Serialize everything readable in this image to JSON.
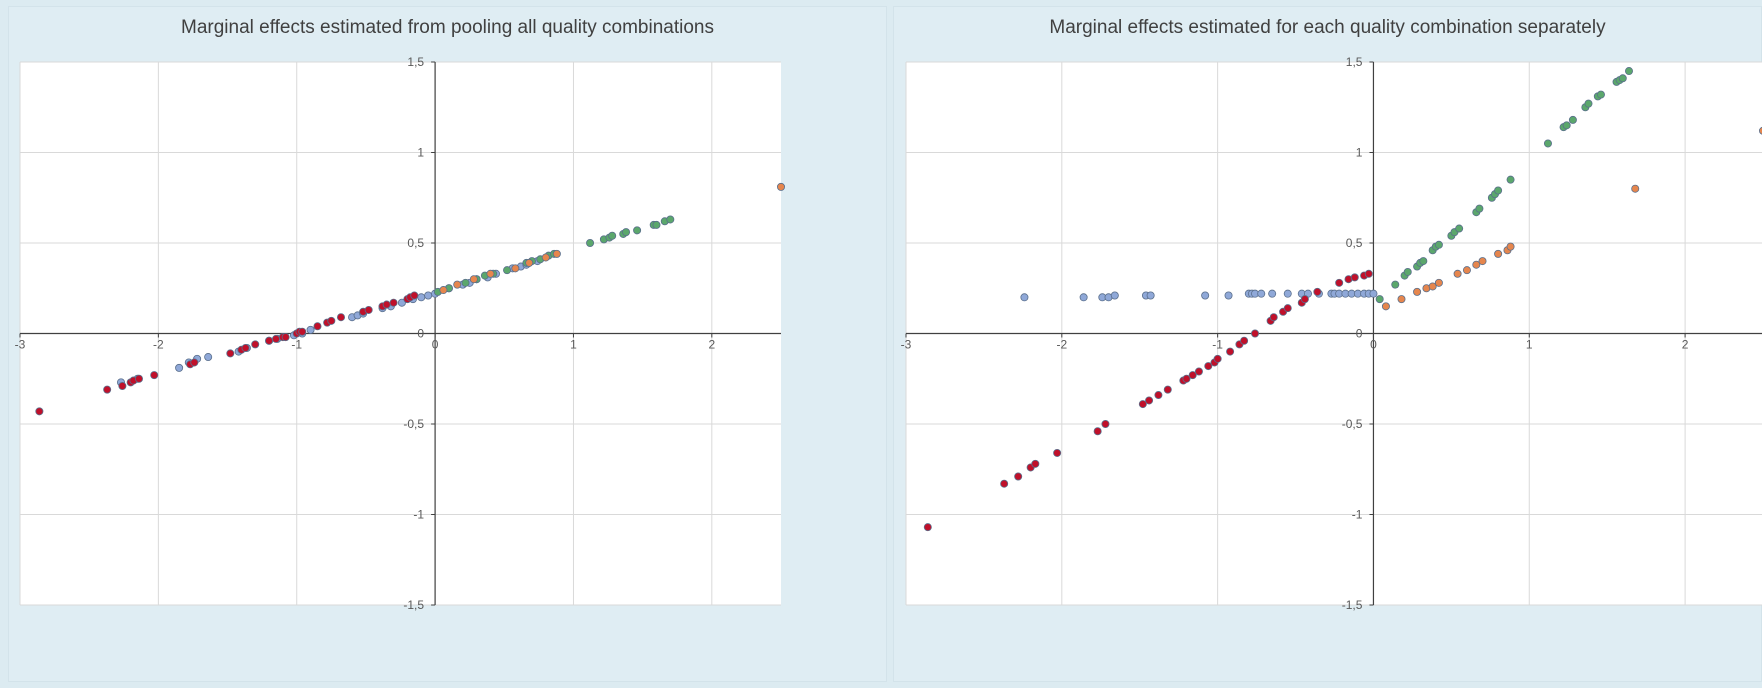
{
  "chart_data": [
    {
      "type": "scatter",
      "title": "Marginal effects estimated from pooling all quality combinations",
      "xlabel": "",
      "ylabel": "",
      "xlim": [
        -3,
        2.5
      ],
      "ylim": [
        -1.5,
        1.5
      ],
      "xticks": [
        "-3",
        "-2",
        "-1",
        "0",
        "1",
        "2"
      ],
      "yticks": [
        "-1,5",
        "-1",
        "-0,5",
        "0",
        "0,5",
        "1",
        "1,5"
      ],
      "grid": true,
      "legend": "none",
      "series": [
        {
          "color": "#8fa8d8",
          "x": [
            -2.27,
            -2.15,
            -1.85,
            -1.78,
            -1.72,
            -1.64,
            -1.42,
            -1.36,
            -1.2,
            -1.14,
            -1.02,
            -0.96,
            -0.9,
            -0.6,
            -0.56,
            -0.52,
            -0.38,
            -0.32,
            -0.24,
            -0.16,
            -0.1,
            -0.05,
            0.0,
            0.1,
            0.2,
            0.25,
            0.3,
            0.38,
            0.44,
            0.56,
            0.62,
            0.66,
            0.74
          ],
          "y": [
            -0.27,
            -0.25,
            -0.19,
            -0.16,
            -0.14,
            -0.13,
            -0.1,
            -0.08,
            -0.04,
            -0.03,
            -0.01,
            0.0,
            0.02,
            0.09,
            0.1,
            0.11,
            0.14,
            0.15,
            0.17,
            0.19,
            0.2,
            0.21,
            0.22,
            0.25,
            0.27,
            0.28,
            0.3,
            0.31,
            0.33,
            0.36,
            0.37,
            0.38,
            0.4
          ]
        },
        {
          "color": "#5ba76c",
          "x": [
            0.02,
            0.1,
            0.22,
            0.3,
            0.36,
            0.42,
            0.52,
            0.66,
            0.7,
            0.76,
            0.82,
            0.86,
            1.12,
            1.22,
            1.26,
            1.28,
            1.36,
            1.38,
            1.46,
            1.58,
            1.6,
            1.66,
            1.7
          ],
          "y": [
            0.23,
            0.25,
            0.28,
            0.3,
            0.32,
            0.33,
            0.35,
            0.39,
            0.4,
            0.41,
            0.43,
            0.44,
            0.5,
            0.52,
            0.53,
            0.54,
            0.55,
            0.56,
            0.57,
            0.6,
            0.6,
            0.62,
            0.63
          ]
        },
        {
          "color": "#e6864d",
          "x": [
            0.06,
            0.16,
            0.28,
            0.4,
            0.58,
            0.68,
            0.8,
            0.88,
            2.5
          ],
          "y": [
            0.24,
            0.27,
            0.3,
            0.33,
            0.36,
            0.39,
            0.42,
            0.44,
            0.81
          ]
        },
        {
          "color": "#c0102a",
          "x": [
            -2.86,
            -2.37,
            -2.26,
            -2.2,
            -2.18,
            -2.14,
            -2.03,
            -1.77,
            -1.74,
            -1.48,
            -1.4,
            -1.37,
            -1.3,
            -1.2,
            -1.15,
            -1.1,
            -1.08,
            -1.0,
            -0.98,
            -0.96,
            -0.85,
            -0.78,
            -0.75,
            -0.68,
            -0.52,
            -0.48,
            -0.38,
            -0.35,
            -0.3,
            -0.2,
            -0.18,
            -0.15
          ],
          "y": [
            -0.43,
            -0.31,
            -0.29,
            -0.27,
            -0.26,
            -0.25,
            -0.23,
            -0.17,
            -0.16,
            -0.11,
            -0.09,
            -0.08,
            -0.06,
            -0.04,
            -0.03,
            -0.02,
            -0.02,
            0.0,
            0.01,
            0.01,
            0.04,
            0.06,
            0.07,
            0.09,
            0.12,
            0.13,
            0.15,
            0.16,
            0.17,
            0.19,
            0.2,
            0.21
          ]
        }
      ]
    },
    {
      "type": "scatter",
      "title": "Marginal effects estimated for each quality combination separately",
      "xlabel": "",
      "ylabel": "",
      "xlim": [
        -3,
        2.5
      ],
      "ylim": [
        -1.5,
        1.5
      ],
      "xticks": [
        "-3",
        "-2",
        "-1",
        "0",
        "1",
        "2"
      ],
      "yticks": [
        "-1,5",
        "-1",
        "-0,5",
        "0",
        "0,5",
        "1",
        "1,5"
      ],
      "grid": true,
      "legend": "none",
      "series": [
        {
          "color": "#8fa8d8",
          "x": [
            -2.24,
            -1.86,
            -1.74,
            -1.7,
            -1.66,
            -1.46,
            -1.43,
            -1.08,
            -0.93,
            -0.8,
            -0.78,
            -0.76,
            -0.72,
            -0.65,
            -0.55,
            -0.46,
            -0.42,
            -0.35,
            -0.27,
            -0.25,
            -0.22,
            -0.18,
            -0.14,
            -0.1,
            -0.06,
            -0.03,
            0.0
          ],
          "y": [
            0.2,
            0.2,
            0.2,
            0.2,
            0.21,
            0.21,
            0.21,
            0.21,
            0.21,
            0.22,
            0.22,
            0.22,
            0.22,
            0.22,
            0.22,
            0.22,
            0.22,
            0.22,
            0.22,
            0.22,
            0.22,
            0.22,
            0.22,
            0.22,
            0.22,
            0.22,
            0.22
          ]
        },
        {
          "color": "#5ba76c",
          "x": [
            0.04,
            0.14,
            0.2,
            0.22,
            0.28,
            0.3,
            0.32,
            0.38,
            0.4,
            0.42,
            0.5,
            0.52,
            0.55,
            0.66,
            0.68,
            0.76,
            0.78,
            0.8,
            0.88,
            1.12,
            1.22,
            1.24,
            1.28,
            1.36,
            1.38,
            1.44,
            1.46,
            1.56,
            1.58,
            1.6,
            1.64
          ],
          "y": [
            0.19,
            0.27,
            0.32,
            0.34,
            0.37,
            0.39,
            0.4,
            0.46,
            0.48,
            0.49,
            0.54,
            0.56,
            0.58,
            0.67,
            0.69,
            0.75,
            0.77,
            0.79,
            0.85,
            1.05,
            1.14,
            1.15,
            1.18,
            1.25,
            1.27,
            1.31,
            1.32,
            1.39,
            1.4,
            1.41,
            1.45
          ]
        },
        {
          "color": "#e6864d",
          "x": [
            0.08,
            0.18,
            0.28,
            0.34,
            0.38,
            0.42,
            0.54,
            0.6,
            0.66,
            0.7,
            0.8,
            0.86,
            0.88,
            1.68,
            2.5
          ],
          "y": [
            0.15,
            0.19,
            0.23,
            0.25,
            0.26,
            0.28,
            0.33,
            0.35,
            0.38,
            0.4,
            0.44,
            0.46,
            0.48,
            0.8,
            1.12
          ]
        },
        {
          "color": "#c0102a",
          "x": [
            -2.86,
            -2.37,
            -2.28,
            -2.2,
            -2.17,
            -2.03,
            -1.77,
            -1.72,
            -1.48,
            -1.44,
            -1.38,
            -1.32,
            -1.22,
            -1.2,
            -1.16,
            -1.12,
            -1.06,
            -1.02,
            -1.0,
            -0.92,
            -0.86,
            -0.83,
            -0.76,
            -0.66,
            -0.64,
            -0.58,
            -0.55,
            -0.46,
            -0.44,
            -0.36,
            -0.22,
            -0.16,
            -0.12,
            -0.06,
            -0.03
          ],
          "y": [
            -1.07,
            -0.83,
            -0.79,
            -0.74,
            -0.72,
            -0.66,
            -0.54,
            -0.5,
            -0.39,
            -0.37,
            -0.34,
            -0.31,
            -0.26,
            -0.25,
            -0.23,
            -0.21,
            -0.18,
            -0.16,
            -0.14,
            -0.1,
            -0.06,
            -0.04,
            0.0,
            0.07,
            0.09,
            0.12,
            0.14,
            0.17,
            0.19,
            0.23,
            0.28,
            0.3,
            0.31,
            0.32,
            0.33
          ]
        }
      ]
    }
  ]
}
